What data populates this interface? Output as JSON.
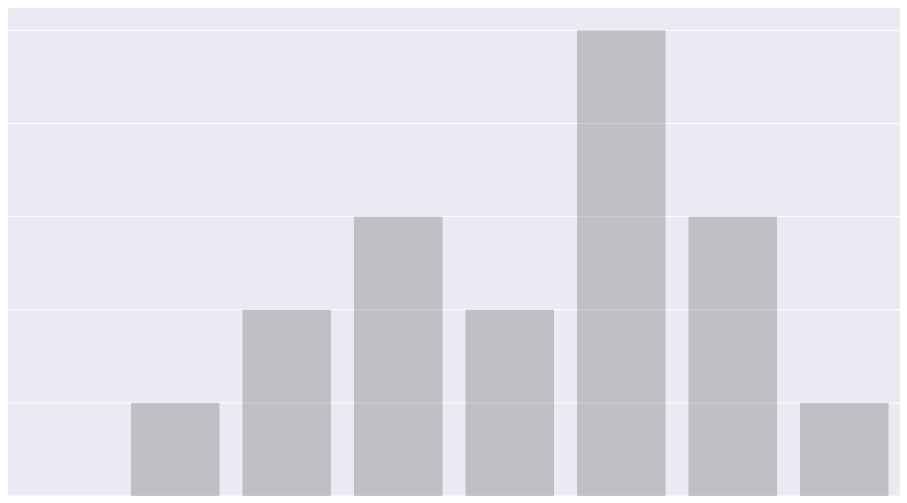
{
  "chart_data": {
    "type": "bar",
    "categories": [
      null,
      null,
      null,
      null,
      null,
      null,
      null,
      null
    ],
    "values": [
      0,
      1,
      2,
      3,
      2,
      5,
      3,
      1
    ],
    "color": "#808080",
    "alpha": 0.4,
    "ylim": [
      0,
      5.24
    ],
    "yticks": [
      0,
      1,
      2,
      3,
      4,
      5
    ],
    "grid": true,
    "background": "#eaeaf2"
  }
}
